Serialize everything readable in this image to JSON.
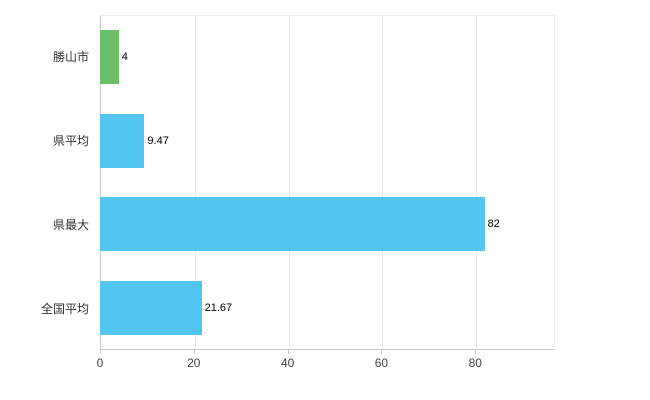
{
  "chart_data": {
    "type": "bar",
    "orientation": "horizontal",
    "title": "",
    "xlabel": "",
    "ylabel": "",
    "categories": [
      "勝山市",
      "県平均",
      "県最大",
      "全国平均"
    ],
    "values": [
      4,
      9.47,
      82,
      21.67
    ],
    "value_labels": [
      "4",
      "9.47",
      "82",
      "21.67"
    ],
    "bar_colors": [
      "#6abf69",
      "#53c6ef",
      "#53c6ef",
      "#53c6ef"
    ],
    "xlim": [
      0,
      97
    ],
    "xticks": [
      0,
      20,
      40,
      60,
      80
    ],
    "grid": true,
    "legend": false
  },
  "colors": {
    "grid": "#ececec",
    "axis": "#c9c9c9",
    "category_text": "#333333",
    "value_text": "#000000",
    "tick_text": "#444444",
    "background": "#ffffff"
  }
}
